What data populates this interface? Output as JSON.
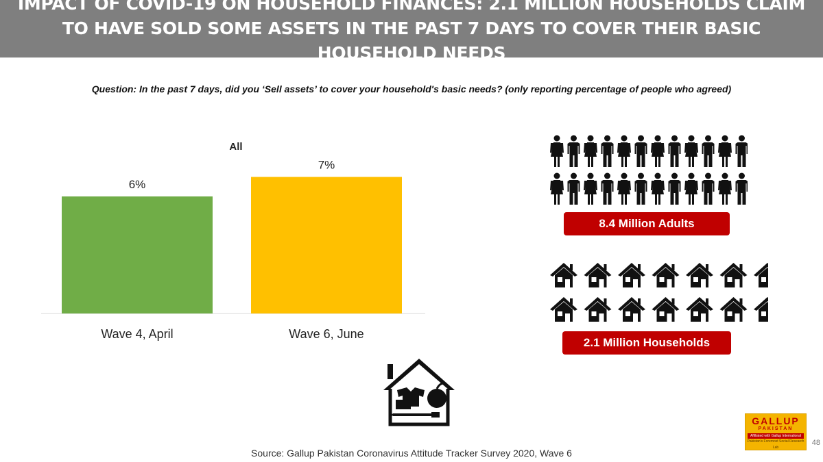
{
  "header": {
    "title": "IMPACT OF COVID-19 ON HOUSEHOLD FINANCES: 2.1 MILLION HOUSEHOLDS CLAIM TO HAVE SOLD SOME ASSETS IN THE PAST 7 DAYS TO COVER THEIR BASIC HOUSEHOLD NEEDS"
  },
  "question": "Question:  In the past 7 days, did you ‘Sell assets’ to cover your household's basic needs? (only reporting percentage of people who agreed)",
  "chart_data": {
    "type": "bar",
    "title": "All",
    "categories": [
      "Wave 4, April",
      "Wave 6, June"
    ],
    "values": [
      6,
      7
    ],
    "value_labels": [
      "6%",
      "7%"
    ],
    "colors": [
      "#70ad47",
      "#ffc000"
    ],
    "ylim": [
      0,
      10
    ],
    "grid": false
  },
  "infographic": {
    "adults_label": "8.4 Million Adults",
    "households_label": "2.1 Million Households",
    "person_icon": "person-icon",
    "house_icon": "house-icon",
    "badge_color": "#c00000"
  },
  "logo": {
    "line1": "GALLUP",
    "line2": "PAKISTAN",
    "line3": "Affiliated with Gallup International",
    "line4": "Pakistan's Foremost Social Research Lab"
  },
  "footer": {
    "source": "Source: Gallup Pakistan Coronavirus Attitude Tracker Survey 2020, Wave 6",
    "page_number": "48"
  }
}
